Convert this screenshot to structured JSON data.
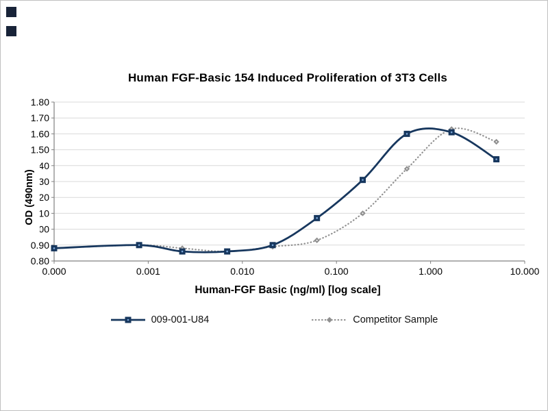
{
  "page": {
    "background": "#ffffff",
    "border_color": "#c0c0c0",
    "decor_square_color": "#182338"
  },
  "chart_data": {
    "type": "line",
    "title": "Human FGF-Basic 154 Induced Proliferation of 3T3 Cells",
    "xlabel": "Human-FGF Basic (ng/ml) [log scale]",
    "ylabel": "OD (490nm)",
    "x_scale": "log",
    "xlim": [
      0.0001,
      10
    ],
    "ylim": [
      0.8,
      1.8
    ],
    "grid": "horizontal",
    "legend_position": "bottom",
    "x_ticks": [
      "0.000",
      "0.001",
      "0.010",
      "0.100",
      "1.000",
      "10.000"
    ],
    "y_ticks": [
      "0.80",
      "0.90",
      "1.00",
      "1.10",
      "1.20",
      "1.30",
      "1.40",
      "1.50",
      "1.60",
      "1.70",
      "1.80"
    ],
    "x": [
      0,
      0.0008,
      0.0023,
      0.0069,
      0.021,
      0.062,
      0.19,
      0.56,
      1.67,
      5
    ],
    "series": [
      {
        "name": "009-001-U84",
        "color": "#17375e",
        "marker": "square",
        "line_style": "solid",
        "values": [
          0.88,
          0.9,
          0.86,
          0.86,
          0.9,
          1.07,
          1.31,
          1.6,
          1.61,
          1.44
        ]
      },
      {
        "name": "Competitor Sample",
        "color": "#909090",
        "marker": "diamond",
        "line_style": "dotted",
        "values": [
          0.88,
          0.9,
          0.88,
          0.86,
          0.89,
          0.93,
          1.1,
          1.38,
          1.63,
          1.55
        ]
      }
    ]
  }
}
